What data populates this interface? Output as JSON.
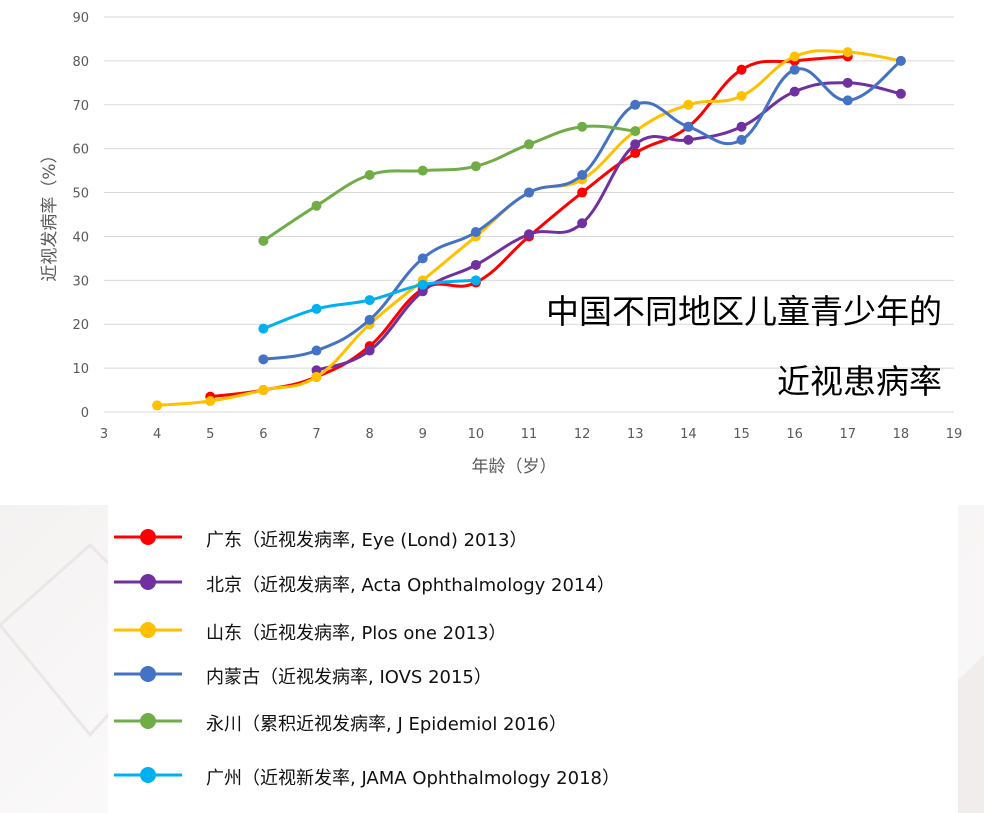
{
  "chart_data": {
    "type": "line",
    "title": "中国不同地区儿童青少年的",
    "subtitle": "近视患病率",
    "xlabel": "年龄（岁）",
    "ylabel": "近视发病率（%）",
    "xlim": [
      3,
      19
    ],
    "ylim": [
      0,
      90
    ],
    "x_ticks": [
      3,
      4,
      5,
      6,
      7,
      8,
      9,
      10,
      11,
      12,
      13,
      14,
      15,
      16,
      17,
      18,
      19
    ],
    "y_ticks": [
      0,
      10,
      20,
      30,
      40,
      50,
      60,
      70,
      80,
      90
    ],
    "grid": "horizontal",
    "legend_position": "bottom",
    "series": [
      {
        "name": "广东",
        "source": "（近视发病率, Eye (Lond) 2013）",
        "color": "#ff0000",
        "x": [
          5,
          6,
          7,
          8,
          9,
          10,
          11,
          12,
          13,
          14,
          15,
          16,
          17
        ],
        "y": [
          3.5,
          5,
          8,
          15,
          28,
          29.5,
          40,
          50,
          59,
          65,
          78,
          80,
          81
        ]
      },
      {
        "name": "北京",
        "source": "（近视发病率, Acta Ophthalmology 2014）",
        "color": "#7030a0",
        "x": [
          7,
          8,
          9,
          10,
          11,
          12,
          13,
          14,
          15,
          16,
          17,
          18
        ],
        "y": [
          9.5,
          14,
          27.5,
          33.5,
          40.5,
          43,
          61,
          62,
          65,
          73,
          75,
          72.5
        ]
      },
      {
        "name": "山东",
        "source": "（近视发病率, Plos one 2013）",
        "color": "#ffc000",
        "x": [
          4,
          5,
          6,
          7,
          8,
          9,
          10,
          11,
          12,
          13,
          14,
          15,
          16,
          17,
          18
        ],
        "y": [
          1.5,
          2.5,
          5,
          8,
          20,
          30,
          40,
          50,
          53,
          64,
          70,
          72,
          81,
          82,
          80
        ]
      },
      {
        "name": "内蒙古",
        "source": "（近视发病率, IOVS 2015）",
        "color": "#4472c4",
        "x": [
          6,
          7,
          8,
          9,
          10,
          11,
          12,
          13,
          14,
          15,
          16,
          17,
          18
        ],
        "y": [
          12,
          14,
          21,
          35,
          41,
          50,
          54,
          70,
          65,
          62,
          78,
          71,
          80
        ]
      },
      {
        "name": "永川",
        "source": "（累积近视发病率, J Epidemiol 2016）",
        "color": "#70ad47",
        "x": [
          6,
          7,
          8,
          9,
          10,
          11,
          12,
          13
        ],
        "y": [
          39,
          47,
          54,
          55,
          56,
          61,
          65,
          64
        ]
      },
      {
        "name": "广州",
        "source": "（近视新发率, JAMA Ophthalmology 2018）",
        "color": "#00b0f0",
        "x": [
          6,
          7,
          8,
          9,
          10
        ],
        "y": [
          19,
          23.5,
          25.5,
          29,
          30
        ]
      }
    ]
  }
}
